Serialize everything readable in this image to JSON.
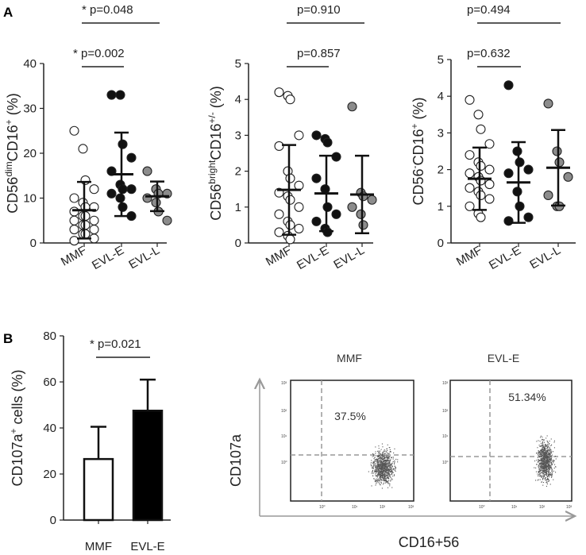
{
  "panel_labels": {
    "a": "A",
    "b": "B"
  },
  "chart_data": [
    {
      "id": "a1",
      "type": "scatter",
      "ylabel": "CD56dim CD16+ (%)",
      "ylabel_parts": {
        "base": "CD56",
        "sup1": "dim",
        "mid": "CD16",
        "sup2": "+",
        "end": " (%)"
      },
      "ylim": [
        0,
        40
      ],
      "yticks": [
        "0",
        "10",
        "20",
        "30",
        "40"
      ],
      "categories": [
        "MMF",
        "EVL-E",
        "EVL-L"
      ],
      "fills": [
        "#ffffff",
        "#111111",
        "#8c8c8c"
      ],
      "series": [
        {
          "name": "MMF",
          "values": [
            25,
            21,
            14,
            12,
            10,
            9,
            8,
            8,
            7,
            6,
            6,
            5,
            5,
            4,
            4,
            3,
            3,
            2,
            2,
            1,
            0.5
          ]
        },
        {
          "name": "EVL-E",
          "values": [
            33,
            33,
            22,
            19,
            16,
            13,
            12,
            12,
            11,
            10,
            8,
            6
          ]
        },
        {
          "name": "EVL-L",
          "values": [
            16,
            12,
            11,
            11,
            10,
            9,
            7,
            5
          ]
        }
      ],
      "means": [
        7.3,
        15.3,
        10.4
      ],
      "sd": [
        6.3,
        9.3,
        3.3
      ],
      "comparisons": [
        {
          "from": 0,
          "to": 2,
          "label": "* p=0.048"
        },
        {
          "from": 0,
          "to": 1,
          "label": "* p=0.002"
        }
      ]
    },
    {
      "id": "a2",
      "type": "scatter",
      "ylabel": "CD56bright CD16+/- (%)",
      "ylabel_parts": {
        "base": "CD56",
        "sup1": "bright",
        "mid": "CD16",
        "sup2": "+/-",
        "end": " (%)"
      },
      "ylim": [
        0,
        5
      ],
      "yticks": [
        "0",
        "1",
        "2",
        "3",
        "4",
        "5"
      ],
      "categories": [
        "MMF",
        "EVL-E",
        "EVL-L"
      ],
      "fills": [
        "#ffffff",
        "#111111",
        "#8c8c8c"
      ],
      "series": [
        {
          "name": "MMF",
          "values": [
            4.2,
            4.1,
            4.0,
            3.0,
            2.7,
            2.0,
            1.8,
            1.6,
            1.4,
            1.3,
            1.2,
            1.0,
            0.8,
            0.6,
            0.5,
            0.4,
            0.3,
            0.2,
            0.1
          ]
        },
        {
          "name": "EVL-E",
          "values": [
            3.0,
            2.9,
            2.8,
            2.4,
            1.8,
            1.5,
            1.0,
            0.8,
            0.6,
            0.4,
            0.3
          ]
        },
        {
          "name": "EVL-L",
          "values": [
            3.8,
            1.4,
            1.3,
            1.2,
            1.0,
            0.8,
            0.5
          ]
        }
      ],
      "means": [
        1.48,
        1.38,
        1.35
      ],
      "sd": [
        1.25,
        1.05,
        1.08
      ],
      "comparisons": [
        {
          "from": 0,
          "to": 2,
          "label": "p=0.910"
        },
        {
          "from": 0,
          "to": 1,
          "label": "p=0.857"
        }
      ]
    },
    {
      "id": "a3",
      "type": "scatter",
      "ylabel": "CD56- CD16+ (%)",
      "ylabel_parts": {
        "base": "CD56",
        "sup1": "-",
        "mid": "CD16",
        "sup2": "+",
        "end": " (%)"
      },
      "ylim": [
        0,
        5
      ],
      "yticks": [
        "0",
        "1",
        "2",
        "3",
        "4",
        "5"
      ],
      "categories": [
        "MMF",
        "EVL-E",
        "EVL-L"
      ],
      "fills": [
        "#ffffff",
        "#111111",
        "#8c8c8c"
      ],
      "series": [
        {
          "name": "MMF",
          "values": [
            3.9,
            3.5,
            3.1,
            2.7,
            2.4,
            2.2,
            2.1,
            2.0,
            1.9,
            1.8,
            1.7,
            1.6,
            1.5,
            1.4,
            1.3,
            1.2,
            1.0,
            0.8,
            0.7
          ]
        },
        {
          "name": "EVL-E",
          "values": [
            4.3,
            2.5,
            2.2,
            2.0,
            1.9,
            1.4,
            1.0,
            0.7,
            0.6
          ]
        },
        {
          "name": "EVL-L",
          "values": [
            3.8,
            2.5,
            2.2,
            1.8,
            1.3,
            1.0,
            1.0
          ]
        }
      ],
      "means": [
        1.75,
        1.65,
        2.05
      ],
      "sd": [
        0.85,
        1.1,
        1.03
      ],
      "comparisons": [
        {
          "from": 0,
          "to": 2,
          "label": "p=0.494"
        },
        {
          "from": 0,
          "to": 1,
          "label": "p=0.632"
        }
      ]
    },
    {
      "id": "b1",
      "type": "bar",
      "ylabel": "CD107a+ cells (%)",
      "ylabel_parts": {
        "base": "CD107a",
        "sup1": "+",
        "mid": " cells",
        "sup2": "",
        "end": " (%)"
      },
      "ylim": [
        0,
        80
      ],
      "yticks": [
        "0",
        "20",
        "40",
        "60",
        "80"
      ],
      "categories": [
        "MMF",
        "EVL-E"
      ],
      "fills": [
        "#ffffff",
        "#000000"
      ],
      "values": [
        26.5,
        47.5
      ],
      "errors": [
        14,
        13.5
      ],
      "comparisons": [
        {
          "from": 0,
          "to": 1,
          "label": "* p=0.021"
        }
      ]
    }
  ],
  "flow": {
    "y_axis_label": "CD107a",
    "x_axis_label": "CD16+56",
    "plots": [
      {
        "title": "MMF",
        "percent": "37.5%"
      },
      {
        "title": "EVL-E",
        "percent": "51.34%"
      }
    ],
    "tick_labels": {
      "t3": "10³",
      "t2": "10²",
      "t1": "10¹",
      "t0": "10⁰"
    }
  }
}
